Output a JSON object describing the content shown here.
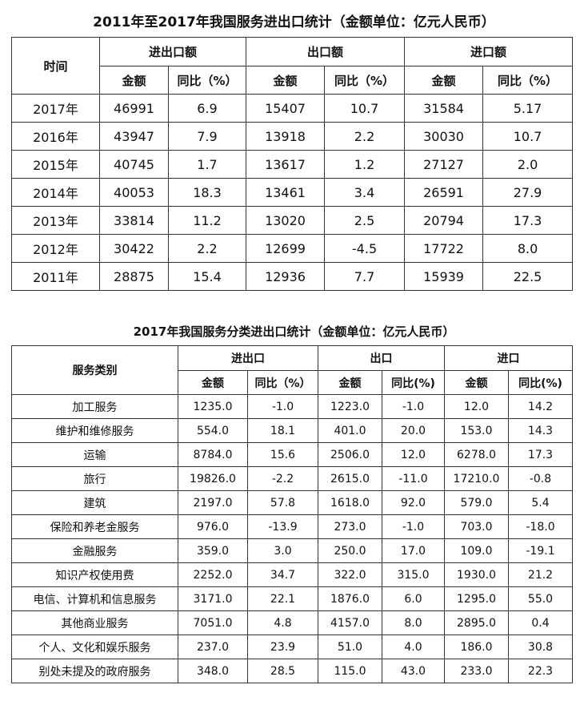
{
  "table1": {
    "title": "2011年至2017年我国服务进出口统计（金额单位：亿元人民币）",
    "col_time": "时间",
    "groups": [
      "进出口额",
      "出口额",
      "进口额"
    ],
    "sub_amount": "金额",
    "sub_yoy": "同比（%）",
    "rows": [
      [
        "2017年",
        "46991",
        "6.9",
        "15407",
        "10.7",
        "31584",
        "5.17"
      ],
      [
        "2016年",
        "43947",
        "7.9",
        "13918",
        "2.2",
        "30030",
        "10.7"
      ],
      [
        "2015年",
        "40745",
        "1.7",
        "13617",
        "1.2",
        "27127",
        "2.0"
      ],
      [
        "2014年",
        "40053",
        "18.3",
        "13461",
        "3.4",
        "26591",
        "27.9"
      ],
      [
        "2013年",
        "33814",
        "11.2",
        "13020",
        "2.5",
        "20794",
        "17.3"
      ],
      [
        "2012年",
        "30422",
        "2.2",
        "12699",
        "-4.5",
        "17722",
        "8.0"
      ],
      [
        "2011年",
        "28875",
        "15.4",
        "12936",
        "7.7",
        "15939",
        "22.5"
      ]
    ]
  },
  "table2": {
    "title": "2017年我国服务分类进出口统计（金额单位：亿元人民币）",
    "col_category": "服务类别",
    "groups": [
      "进出口",
      "出口",
      "进口"
    ],
    "sub_amount": "金额",
    "sub_yoy_1": "同比（%）",
    "sub_yoy_2": "同比(%)",
    "sub_yoy_3": "同比(%)",
    "rows": [
      [
        "加工服务",
        "1235.0",
        "-1.0",
        "1223.0",
        "-1.0",
        "12.0",
        "14.2"
      ],
      [
        "维护和维修服务",
        "554.0",
        "18.1",
        "401.0",
        "20.0",
        "153.0",
        "14.3"
      ],
      [
        "运输",
        "8784.0",
        "15.6",
        "2506.0",
        "12.0",
        "6278.0",
        "17.3"
      ],
      [
        "旅行",
        "19826.0",
        "-2.2",
        "2615.0",
        "-11.0",
        "17210.0",
        "-0.8"
      ],
      [
        "建筑",
        "2197.0",
        "57.8",
        "1618.0",
        "92.0",
        "579.0",
        "5.4"
      ],
      [
        "保险和养老金服务",
        "976.0",
        "-13.9",
        "273.0",
        "-1.0",
        "703.0",
        "-18.0"
      ],
      [
        "金融服务",
        "359.0",
        "3.0",
        "250.0",
        "17.0",
        "109.0",
        "-19.1"
      ],
      [
        "知识产权使用费",
        "2252.0",
        "34.7",
        "322.0",
        "315.0",
        "1930.0",
        "21.2"
      ],
      [
        "电信、计算机和信息服务",
        "3171.0",
        "22.1",
        "1876.0",
        "6.0",
        "1295.0",
        "55.0"
      ],
      [
        "其他商业服务",
        "7051.0",
        "4.8",
        "4157.0",
        "8.0",
        "2895.0",
        "0.4"
      ],
      [
        "个人、文化和娱乐服务",
        "237.0",
        "23.9",
        "51.0",
        "4.0",
        "186.0",
        "30.8"
      ],
      [
        "别处未提及的政府服务",
        "348.0",
        "28.5",
        "115.0",
        "43.0",
        "233.0",
        "22.3"
      ]
    ]
  }
}
